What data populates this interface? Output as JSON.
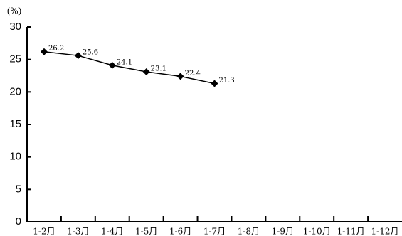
{
  "chart_data": {
    "type": "line",
    "y_label": "(%)",
    "categories": [
      "1-2月",
      "1-3月",
      "1-4月",
      "1-5月",
      "1-6月",
      "1-7月",
      "1-8月",
      "1-9月",
      "1-10月",
      "1-11月",
      "1-12月"
    ],
    "values": [
      26.2,
      25.6,
      24.1,
      23.1,
      22.4,
      21.3,
      null,
      null,
      null,
      null,
      null
    ],
    "color": "#000000",
    "ylim": [
      0,
      30
    ],
    "yticks": [
      0,
      5,
      10,
      15,
      20,
      25,
      30
    ],
    "grid": false,
    "data_labels": true
  }
}
